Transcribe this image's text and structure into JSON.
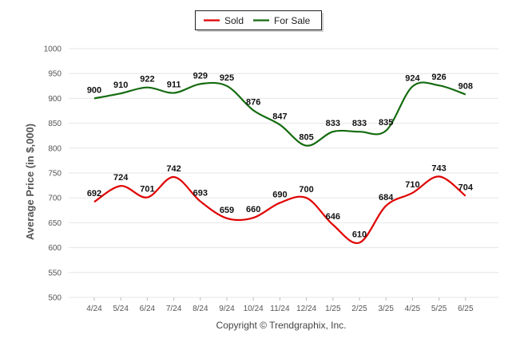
{
  "chart_data": {
    "type": "line",
    "categories": [
      "4/24",
      "5/24",
      "6/24",
      "7/24",
      "8/24",
      "9/24",
      "10/24",
      "11/24",
      "12/24",
      "1/25",
      "2/25",
      "3/25",
      "4/25",
      "5/25",
      "6/25"
    ],
    "series": [
      {
        "name": "Sold",
        "color": "#e00000",
        "values": [
          692,
          724,
          701,
          742,
          693,
          659,
          660,
          690,
          700,
          646,
          610,
          684,
          710,
          743,
          704
        ]
      },
      {
        "name": "For Sale",
        "color": "#146b0f",
        "values": [
          900,
          910,
          922,
          911,
          929,
          925,
          876,
          847,
          805,
          833,
          833,
          835,
          924,
          926,
          908
        ]
      }
    ],
    "ylabel": "Average Price (in $,000)",
    "ylim": [
      500,
      1000
    ],
    "yticks": [
      500,
      550,
      600,
      650,
      700,
      750,
      800,
      850,
      900,
      950,
      1000
    ],
    "grid": true,
    "legend": "top-center",
    "footer": "Copyright © Trendgraphix, Inc."
  }
}
